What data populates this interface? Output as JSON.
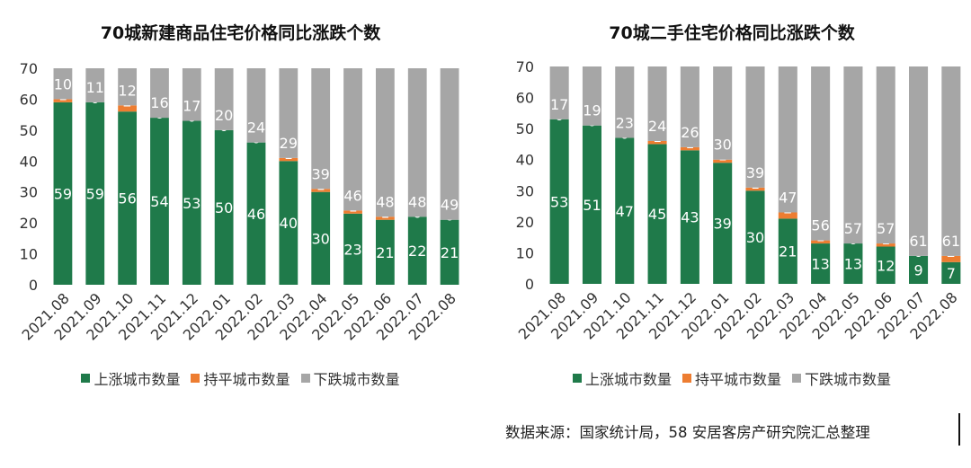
{
  "colors": {
    "up": "#1f7a4a",
    "flat": "#ed7d31",
    "down": "#a6a6a6"
  },
  "chart_data": [
    {
      "type": "bar",
      "stacked": true,
      "title": "70城新建商品住宅价格同比涨跌个数",
      "categories": [
        "2021.08",
        "2021.09",
        "2021.10",
        "2021.11",
        "2021.12",
        "2022.01",
        "2022.02",
        "2022.03",
        "2022.04",
        "2022.05",
        "2022.06",
        "2022.07",
        "2022.08"
      ],
      "series": [
        {
          "name": "上涨城市数量",
          "values": [
            59,
            59,
            56,
            54,
            53,
            50,
            46,
            40,
            30,
            23,
            21,
            22,
            21
          ]
        },
        {
          "name": "持平城市数量",
          "values": [
            1,
            0,
            2,
            0,
            0,
            0,
            0,
            1,
            1,
            1,
            1,
            0,
            0
          ]
        },
        {
          "name": "下跌城市数量",
          "values": [
            10,
            11,
            12,
            16,
            17,
            20,
            24,
            29,
            39,
            46,
            48,
            48,
            49
          ]
        }
      ],
      "ylim": [
        0,
        70
      ],
      "yticks": [
        0,
        10,
        20,
        30,
        40,
        50,
        60,
        70
      ],
      "legend": "bottom"
    },
    {
      "type": "bar",
      "stacked": true,
      "title": "70城二手住宅价格同比涨跌个数",
      "categories": [
        "2021.08",
        "2021.09",
        "2021.10",
        "2021.11",
        "2021.12",
        "2022.01",
        "2022.02",
        "2022.03",
        "2022.04",
        "2022.05",
        "2022.06",
        "2022.07",
        "2022.08"
      ],
      "series": [
        {
          "name": "上涨城市数量",
          "values": [
            53,
            51,
            47,
            45,
            43,
            39,
            30,
            21,
            13,
            13,
            12,
            9,
            7
          ]
        },
        {
          "name": "持平城市数量",
          "values": [
            0,
            0,
            0,
            1,
            1,
            1,
            1,
            2,
            1,
            0,
            1,
            0,
            2
          ]
        },
        {
          "name": "下跌城市数量",
          "values": [
            17,
            19,
            23,
            24,
            26,
            30,
            39,
            47,
            56,
            57,
            57,
            61,
            61
          ]
        }
      ],
      "ylim": [
        0,
        70
      ],
      "yticks": [
        0,
        10,
        20,
        30,
        40,
        50,
        60,
        70
      ],
      "legend": "bottom"
    }
  ],
  "source_note": "数据来源：国家统计局，58 安居客房产研究院汇总整理"
}
